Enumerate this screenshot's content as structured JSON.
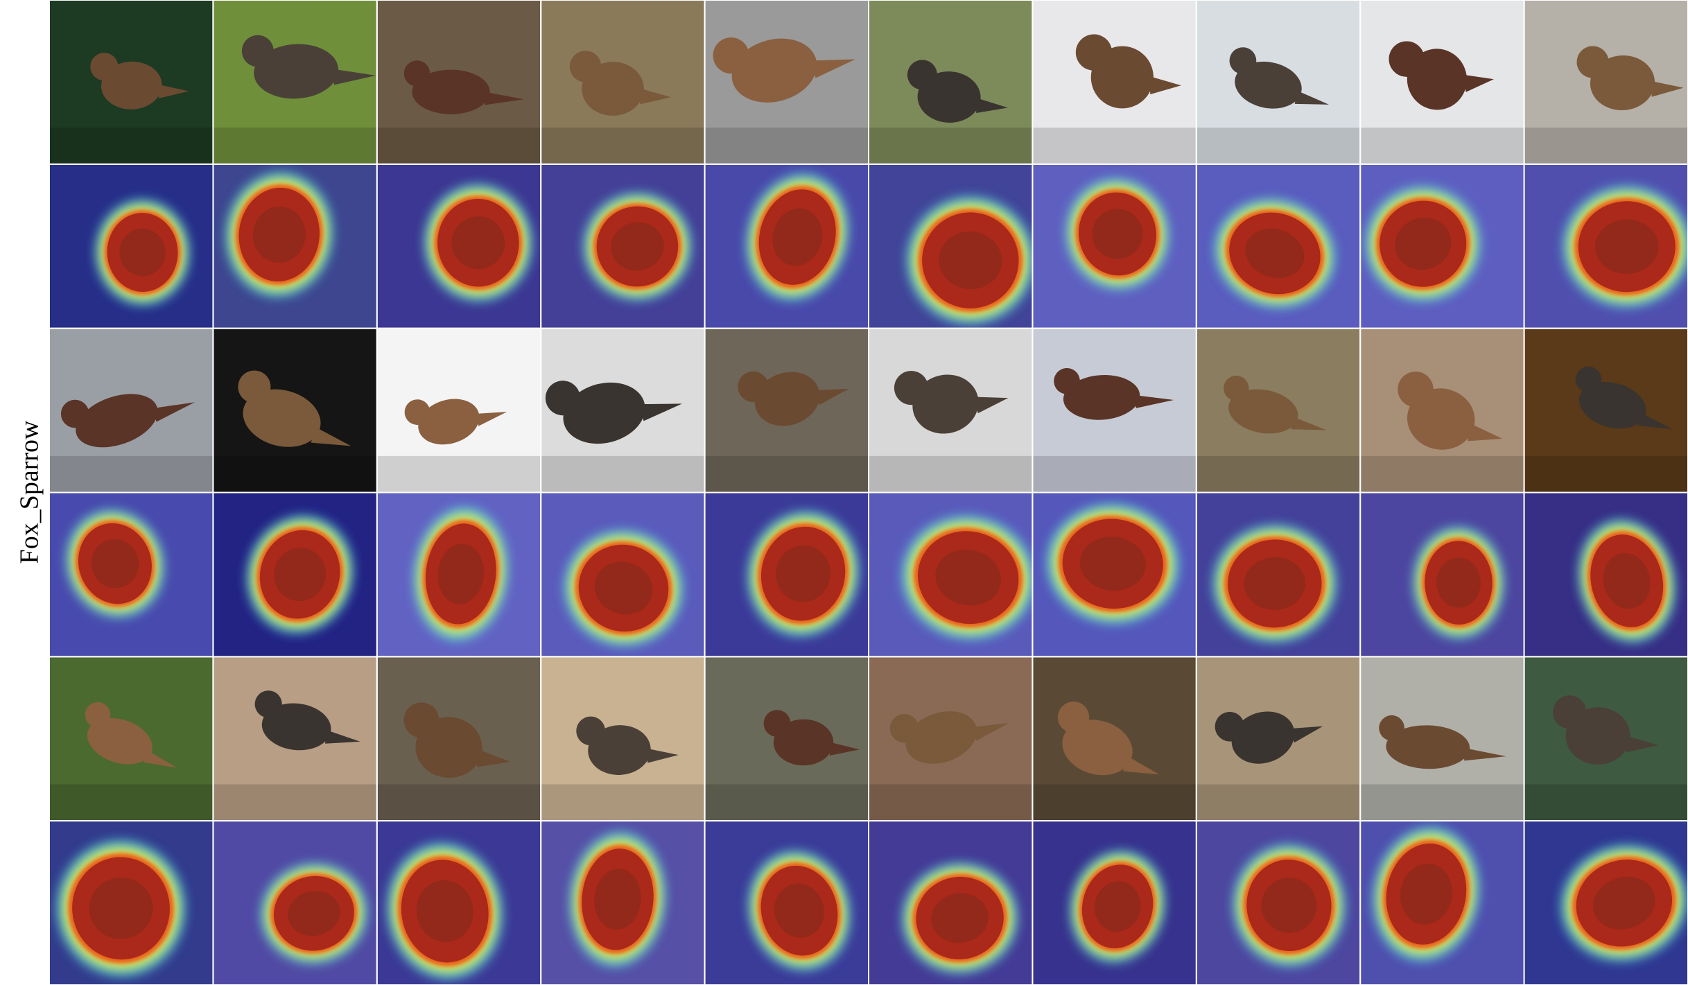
{
  "figure": {
    "label": "Fox_Sparrow"
  }
}
